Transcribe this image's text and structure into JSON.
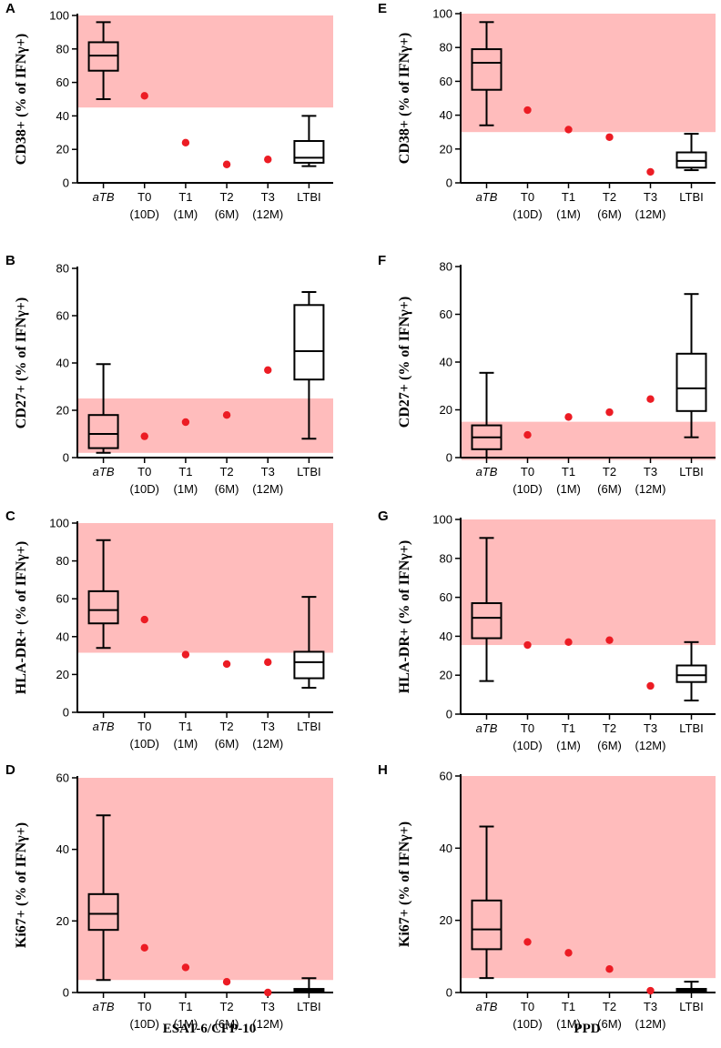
{
  "colors": {
    "shade": "#ffbcbc",
    "point": "#ec1c24",
    "axis": "#000000"
  },
  "footer": {
    "left": "ESAT-6/CFP-10",
    "right": "PPD"
  },
  "chart_data": [
    {
      "id": "A",
      "type": "box-scatter",
      "ylabel": "CD38+ (% of IFNγ+)",
      "yticks": [
        0,
        20,
        40,
        60,
        80,
        100
      ],
      "ylim": [
        0,
        100
      ],
      "shade_range": [
        45,
        100
      ],
      "categories": [
        {
          "main": "aTB",
          "sub": "",
          "italic": true
        },
        {
          "main": "T0",
          "sub": "(10D)"
        },
        {
          "main": "T1",
          "sub": "(1M)"
        },
        {
          "main": "T2",
          "sub": "(6M)"
        },
        {
          "main": "T3",
          "sub": "(12M)"
        },
        {
          "main": "LTBI",
          "sub": ""
        }
      ],
      "boxes": [
        {
          "index": 0,
          "min": 50,
          "q1": 67,
          "median": 76,
          "q3": 84,
          "max": 96
        },
        {
          "index": 5,
          "min": 10,
          "q1": 12,
          "median": 15,
          "q3": 25,
          "max": 40
        }
      ],
      "points": [
        {
          "index": 1,
          "value": 52
        },
        {
          "index": 2,
          "value": 24
        },
        {
          "index": 3,
          "value": 11
        },
        {
          "index": 4,
          "value": 14
        }
      ]
    },
    {
      "id": "B",
      "type": "box-scatter",
      "ylabel": "CD27+ (% of IFNγ+)",
      "yticks": [
        0,
        20,
        40,
        60,
        80
      ],
      "ylim": [
        0,
        80
      ],
      "shade_range": [
        2,
        25
      ],
      "categories": [
        {
          "main": "aTB",
          "sub": "",
          "italic": true
        },
        {
          "main": "T0",
          "sub": "(10D)"
        },
        {
          "main": "T1",
          "sub": "(1M)"
        },
        {
          "main": "T2",
          "sub": "(6M)"
        },
        {
          "main": "T3",
          "sub": "(12M)"
        },
        {
          "main": "LTBI",
          "sub": ""
        }
      ],
      "boxes": [
        {
          "index": 0,
          "min": 2,
          "q1": 4,
          "median": 10,
          "q3": 18,
          "max": 39.5
        },
        {
          "index": 5,
          "min": 8,
          "q1": 33,
          "median": 45,
          "q3": 64.5,
          "max": 70
        }
      ],
      "points": [
        {
          "index": 1,
          "value": 9
        },
        {
          "index": 2,
          "value": 15
        },
        {
          "index": 3,
          "value": 18
        },
        {
          "index": 4,
          "value": 37
        }
      ]
    },
    {
      "id": "C",
      "type": "box-scatter",
      "ylabel": "HLA-DR+ (% of IFNγ+)",
      "yticks": [
        0,
        20,
        40,
        60,
        80,
        100
      ],
      "ylim": [
        0,
        100
      ],
      "shade_range": [
        31.5,
        100
      ],
      "categories": [
        {
          "main": "aTB",
          "sub": "",
          "italic": true
        },
        {
          "main": "T0",
          "sub": "(10D)"
        },
        {
          "main": "T1",
          "sub": "(1M)"
        },
        {
          "main": "T2",
          "sub": "(6M)"
        },
        {
          "main": "T3",
          "sub": "(12M)"
        },
        {
          "main": "LTBI",
          "sub": ""
        }
      ],
      "boxes": [
        {
          "index": 0,
          "min": 34,
          "q1": 47,
          "median": 54,
          "q3": 64,
          "max": 91
        },
        {
          "index": 5,
          "min": 13,
          "q1": 18,
          "median": 26.5,
          "q3": 32,
          "max": 61
        }
      ],
      "points": [
        {
          "index": 1,
          "value": 49
        },
        {
          "index": 2,
          "value": 30.5
        },
        {
          "index": 3,
          "value": 25.5
        },
        {
          "index": 4,
          "value": 26.5
        }
      ]
    },
    {
      "id": "D",
      "type": "box-scatter",
      "ylabel": "Ki67+ (% of IFNγ+)",
      "yticks": [
        0,
        20,
        40,
        60
      ],
      "ylim": [
        0,
        60
      ],
      "shade_range": [
        3.5,
        60
      ],
      "categories": [
        {
          "main": "aTB",
          "sub": "",
          "italic": true
        },
        {
          "main": "T0",
          "sub": "(10D)"
        },
        {
          "main": "T1",
          "sub": "(1M)"
        },
        {
          "main": "T2",
          "sub": "(6M)"
        },
        {
          "main": "T3",
          "sub": "(12M)"
        },
        {
          "main": "LTBI",
          "sub": ""
        }
      ],
      "boxes": [
        {
          "index": 0,
          "min": 3.5,
          "q1": 17.5,
          "median": 22,
          "q3": 27.5,
          "max": 49.5
        },
        {
          "index": 5,
          "min": 0,
          "q1": 0,
          "median": 0.5,
          "q3": 1,
          "max": 4
        }
      ],
      "points": [
        {
          "index": 1,
          "value": 12.5
        },
        {
          "index": 2,
          "value": 7
        },
        {
          "index": 3,
          "value": 3
        },
        {
          "index": 4,
          "value": 0
        }
      ]
    },
    {
      "id": "E",
      "type": "box-scatter",
      "ylabel": "CD38+ (% of IFNγ+)",
      "yticks": [
        0,
        20,
        40,
        60,
        80,
        100
      ],
      "ylim": [
        0,
        100
      ],
      "shade_range": [
        30,
        100
      ],
      "categories": [
        {
          "main": "aTB",
          "sub": "",
          "italic": true
        },
        {
          "main": "T0",
          "sub": "(10D)"
        },
        {
          "main": "T1",
          "sub": "(1M)"
        },
        {
          "main": "T2",
          "sub": "(6M)"
        },
        {
          "main": "T3",
          "sub": "(12M)"
        },
        {
          "main": "LTBI",
          "sub": ""
        }
      ],
      "boxes": [
        {
          "index": 0,
          "min": 34,
          "q1": 55,
          "median": 71,
          "q3": 79,
          "max": 95
        },
        {
          "index": 5,
          "min": 7.5,
          "q1": 9,
          "median": 13,
          "q3": 18,
          "max": 29
        }
      ],
      "points": [
        {
          "index": 1,
          "value": 43
        },
        {
          "index": 2,
          "value": 31.5
        },
        {
          "index": 3,
          "value": 27
        },
        {
          "index": 4,
          "value": 6.5
        }
      ]
    },
    {
      "id": "F",
      "type": "box-scatter",
      "ylabel": "CD27+ (% of IFNγ+)",
      "yticks": [
        0,
        20,
        40,
        60,
        80
      ],
      "ylim": [
        0,
        80
      ],
      "shade_range": [
        -1,
        15
      ],
      "categories": [
        {
          "main": "aTB",
          "sub": "",
          "italic": true
        },
        {
          "main": "T0",
          "sub": "(10D)"
        },
        {
          "main": "T1",
          "sub": "(1M)"
        },
        {
          "main": "T2",
          "sub": "(6M)"
        },
        {
          "main": "T3",
          "sub": "(12M)"
        },
        {
          "main": "LTBI",
          "sub": ""
        }
      ],
      "boxes": [
        {
          "index": 0,
          "min": 0,
          "q1": 3.5,
          "median": 8.5,
          "q3": 13.5,
          "max": 35.5
        },
        {
          "index": 5,
          "min": 8.5,
          "q1": 19.5,
          "median": 29,
          "q3": 43.5,
          "max": 68.5
        }
      ],
      "points": [
        {
          "index": 1,
          "value": 9.5
        },
        {
          "index": 2,
          "value": 17
        },
        {
          "index": 3,
          "value": 19
        },
        {
          "index": 4,
          "value": 24.5
        }
      ]
    },
    {
      "id": "G",
      "type": "box-scatter",
      "ylabel": "HLA-DR+ (% of IFNγ+)",
      "yticks": [
        0,
        20,
        40,
        60,
        80,
        100
      ],
      "ylim": [
        0,
        100
      ],
      "shade_range": [
        35.5,
        100
      ],
      "categories": [
        {
          "main": "aTB",
          "sub": "",
          "italic": true
        },
        {
          "main": "T0",
          "sub": "(10D)"
        },
        {
          "main": "T1",
          "sub": "(1M)"
        },
        {
          "main": "T2",
          "sub": "(6M)"
        },
        {
          "main": "T3",
          "sub": "(12M)"
        },
        {
          "main": "LTBI",
          "sub": ""
        }
      ],
      "boxes": [
        {
          "index": 0,
          "min": 17,
          "q1": 39,
          "median": 49.5,
          "q3": 57,
          "max": 90.5
        },
        {
          "index": 5,
          "min": 7,
          "q1": 16.5,
          "median": 20,
          "q3": 25,
          "max": 37
        }
      ],
      "points": [
        {
          "index": 1,
          "value": 35.5
        },
        {
          "index": 2,
          "value": 37
        },
        {
          "index": 3,
          "value": 38
        },
        {
          "index": 4,
          "value": 14.5
        }
      ]
    },
    {
      "id": "H",
      "type": "box-scatter",
      "ylabel": "Ki67+ (% of IFNγ+)",
      "yticks": [
        0,
        20,
        40,
        60
      ],
      "ylim": [
        0,
        60
      ],
      "shade_range": [
        4,
        60
      ],
      "categories": [
        {
          "main": "aTB",
          "sub": "",
          "italic": true
        },
        {
          "main": "T0",
          "sub": "(10D)"
        },
        {
          "main": "T1",
          "sub": "(1M)"
        },
        {
          "main": "T2",
          "sub": "(6M)"
        },
        {
          "main": "T3",
          "sub": "(12M)"
        },
        {
          "main": "LTBI",
          "sub": ""
        }
      ],
      "boxes": [
        {
          "index": 0,
          "min": 4,
          "q1": 12,
          "median": 17.5,
          "q3": 25.5,
          "max": 46
        },
        {
          "index": 5,
          "min": 0,
          "q1": 0,
          "median": 0.5,
          "q3": 1,
          "max": 3
        }
      ],
      "points": [
        {
          "index": 1,
          "value": 14
        },
        {
          "index": 2,
          "value": 11
        },
        {
          "index": 3,
          "value": 6.5
        },
        {
          "index": 4,
          "value": 0.5
        }
      ]
    }
  ]
}
